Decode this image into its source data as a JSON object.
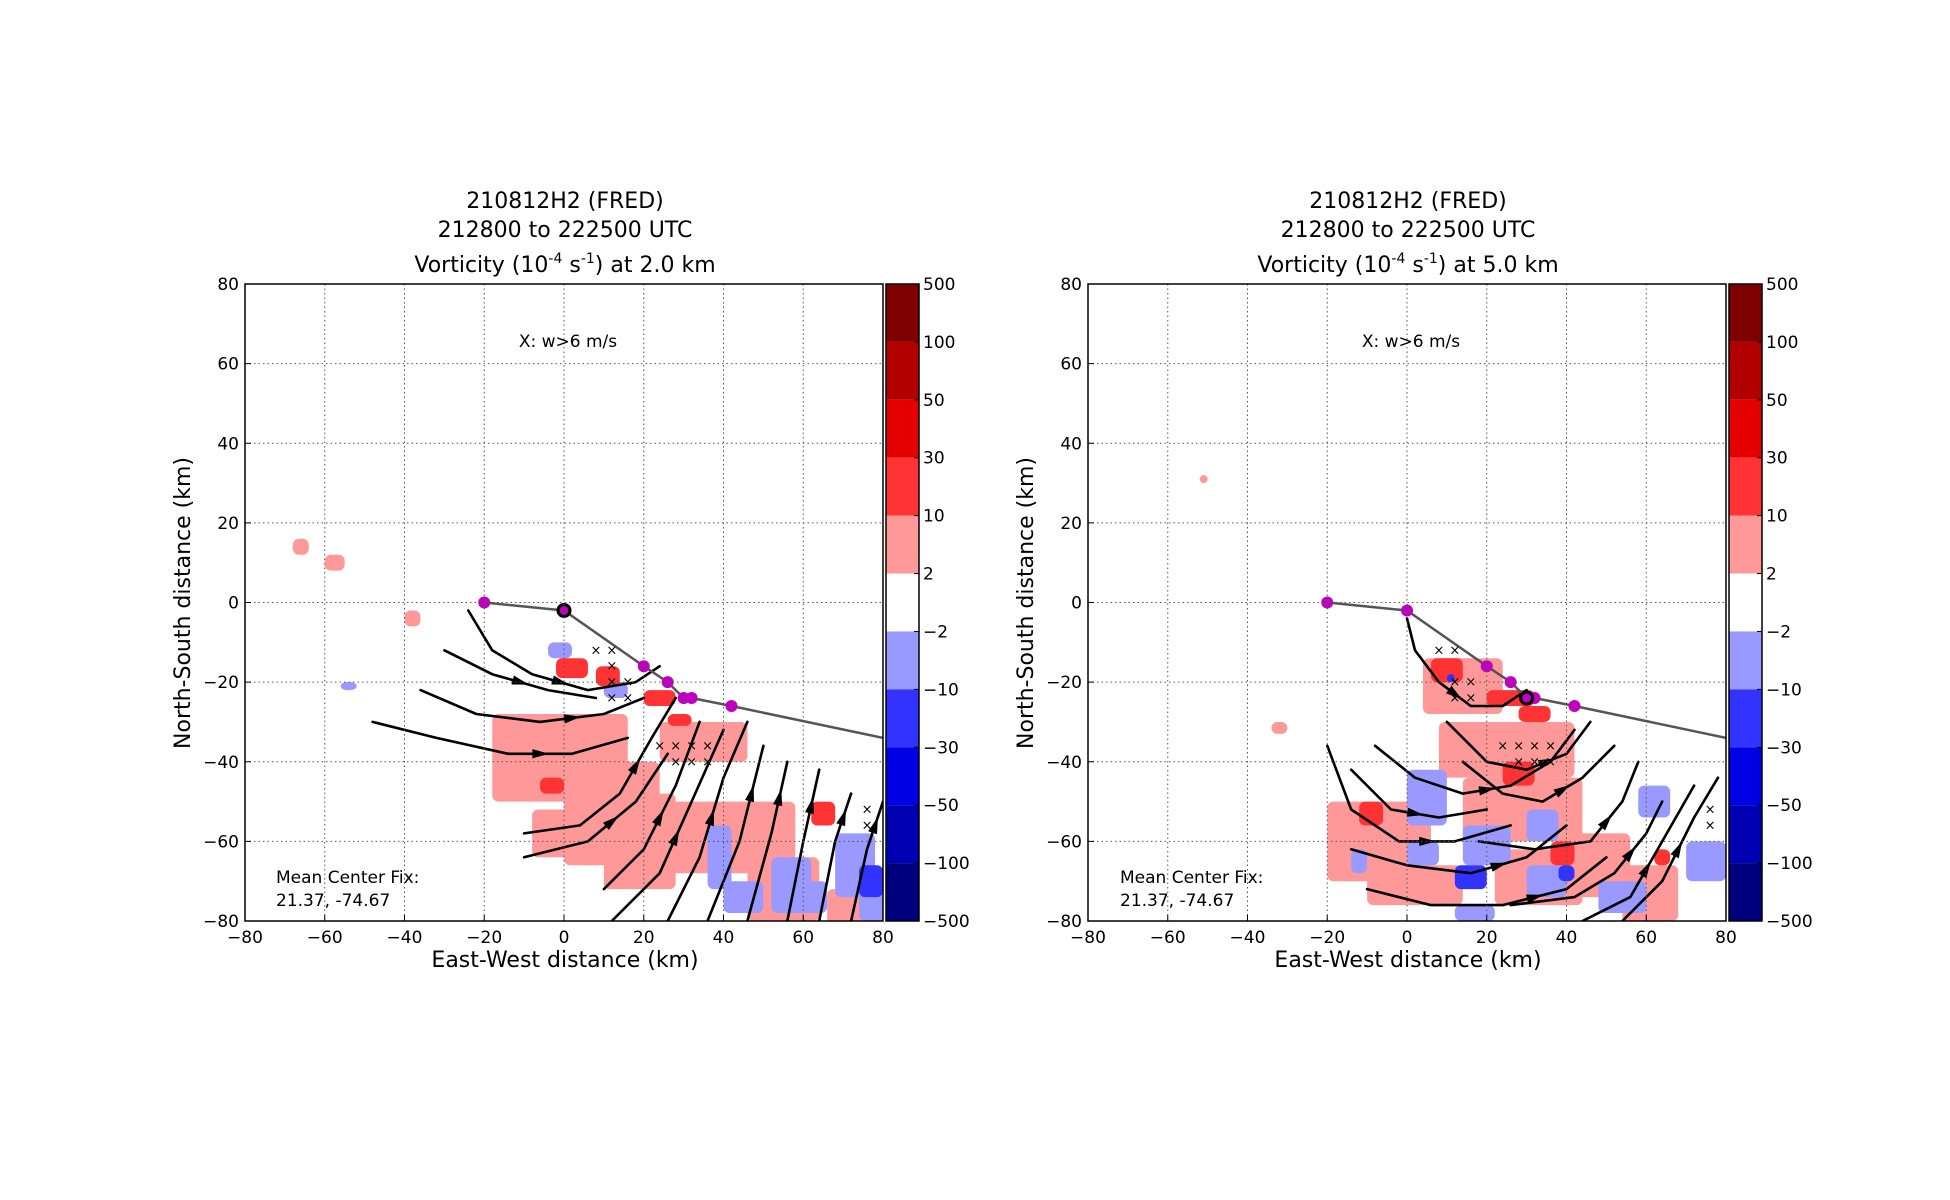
{
  "chart_data": [
    {
      "type": "contour-map",
      "title_lines": [
        "210812H2 (FRED)",
        "212800 to 222500 UTC"
      ],
      "title_main": "Vorticity (10",
      "title_sup1": "-4",
      "title_mid": " s",
      "title_sup2": "-1",
      "title_end": ") at 2.0 km",
      "xlabel": "East-West distance (km)",
      "ylabel": "North-South distance (km)",
      "xlim": [
        -80,
        80
      ],
      "ylim": [
        -80,
        80
      ],
      "xticks": [
        -80,
        -60,
        -40,
        -20,
        0,
        20,
        40,
        60,
        80
      ],
      "yticks": [
        -80,
        -60,
        -40,
        -20,
        0,
        20,
        40,
        60,
        80
      ],
      "grid": true,
      "legend_text": "X: w>6 m/s",
      "center_fix_label": "Mean Center Fix:",
      "center_fix_value": "21.37, -74.67",
      "colorbar_levels": [
        -500,
        -100,
        -50,
        -30,
        -10,
        -2,
        2,
        10,
        30,
        50,
        100,
        500
      ],
      "colorbar_labels": [
        "500",
        "100",
        "50",
        "30",
        "10",
        "2",
        "−2",
        "−10",
        "−30",
        "−50",
        "−100",
        "−500"
      ],
      "colorbar_colors": [
        "#7f0000",
        "#b20000",
        "#e50000",
        "#ff3333",
        "#ff9999",
        "#ffffff",
        "#9999ff",
        "#3333ff",
        "#0000e5",
        "#0000b2",
        "#00007f"
      ],
      "track": [
        [
          -20,
          0
        ],
        [
          0,
          -2
        ],
        [
          20,
          -16
        ],
        [
          26,
          -20
        ],
        [
          30,
          -24
        ],
        [
          32,
          -24
        ],
        [
          42,
          -26
        ],
        [
          80,
          -34
        ]
      ],
      "track_points": [
        [
          -20,
          0
        ],
        [
          0,
          -2
        ],
        [
          20,
          -16
        ],
        [
          26,
          -20
        ],
        [
          30,
          -24
        ],
        [
          32,
          -24
        ],
        [
          42,
          -26
        ]
      ],
      "center": [
        0,
        -2
      ],
      "w_marks": [
        [
          8,
          -12
        ],
        [
          12,
          -12
        ],
        [
          12,
          -16
        ],
        [
          12,
          -20
        ],
        [
          16,
          -20
        ],
        [
          12,
          -24
        ],
        [
          16,
          -24
        ],
        [
          24,
          -36
        ],
        [
          28,
          -36
        ],
        [
          32,
          -36
        ],
        [
          36,
          -36
        ],
        [
          28,
          -40
        ],
        [
          32,
          -40
        ],
        [
          36,
          -40
        ],
        [
          76,
          -52
        ],
        [
          76,
          -56
        ]
      ],
      "positive_patches": [
        [
          -18,
          -28,
          34,
          22
        ],
        [
          0,
          -40,
          24,
          26
        ],
        [
          -8,
          -52,
          30,
          12
        ],
        [
          24,
          -30,
          22,
          10
        ],
        [
          26,
          -50,
          32,
          18
        ],
        [
          -68,
          16,
          4,
          4
        ],
        [
          -60,
          12,
          5,
          4
        ],
        [
          -40,
          -2,
          4,
          4
        ],
        [
          46,
          -64,
          18,
          16
        ],
        [
          66,
          -72,
          12,
          22
        ],
        [
          10,
          -48,
          18,
          24
        ]
      ],
      "strong_patches": [
        [
          -2,
          -14,
          8,
          5
        ],
        [
          8,
          -16,
          6,
          5
        ],
        [
          -6,
          -44,
          6,
          4
        ],
        [
          20,
          -22,
          8,
          4
        ],
        [
          26,
          -28,
          6,
          3
        ],
        [
          62,
          -50,
          6,
          6
        ]
      ],
      "negative_patches": [
        [
          -4,
          -10,
          6,
          4
        ],
        [
          10,
          -20,
          6,
          4
        ],
        [
          36,
          -56,
          6,
          16
        ],
        [
          52,
          -64,
          10,
          14
        ],
        [
          58,
          -70,
          8,
          8
        ],
        [
          68,
          -58,
          10,
          16
        ],
        [
          74,
          -70,
          8,
          10
        ],
        [
          40,
          -70,
          10,
          8
        ],
        [
          -56,
          -20,
          4,
          2
        ]
      ],
      "blue_patches": [
        [
          74,
          -66,
          6,
          8
        ]
      ],
      "streamlines": [
        [
          [
            -24,
            -2
          ],
          [
            -18,
            -12
          ],
          [
            -8,
            -18
          ],
          [
            6,
            -22
          ],
          [
            18,
            -20
          ],
          [
            24,
            -16
          ]
        ],
        [
          [
            -30,
            -12
          ],
          [
            -18,
            -18
          ],
          [
            -4,
            -22
          ],
          [
            8,
            -24
          ]
        ],
        [
          [
            -36,
            -22
          ],
          [
            -22,
            -28
          ],
          [
            -6,
            -30
          ],
          [
            10,
            -28
          ],
          [
            20,
            -24
          ]
        ],
        [
          [
            -48,
            -30
          ],
          [
            -32,
            -34
          ],
          [
            -14,
            -38
          ],
          [
            2,
            -38
          ],
          [
            16,
            -34
          ]
        ],
        [
          [
            -10,
            -58
          ],
          [
            4,
            -56
          ],
          [
            14,
            -48
          ],
          [
            22,
            -34
          ],
          [
            28,
            -24
          ]
        ],
        [
          [
            -10,
            -64
          ],
          [
            6,
            -60
          ],
          [
            18,
            -50
          ],
          [
            26,
            -38
          ]
        ],
        [
          [
            10,
            -72
          ],
          [
            20,
            -62
          ],
          [
            28,
            -46
          ],
          [
            34,
            -30
          ]
        ],
        [
          [
            12,
            -80
          ],
          [
            24,
            -68
          ],
          [
            32,
            -50
          ],
          [
            40,
            -32
          ]
        ],
        [
          [
            26,
            -80
          ],
          [
            34,
            -64
          ],
          [
            40,
            -44
          ],
          [
            46,
            -30
          ]
        ],
        [
          [
            36,
            -80
          ],
          [
            44,
            -60
          ],
          [
            50,
            -36
          ]
        ],
        [
          [
            46,
            -80
          ],
          [
            52,
            -58
          ],
          [
            56,
            -40
          ]
        ],
        [
          [
            56,
            -80
          ],
          [
            60,
            -60
          ],
          [
            64,
            -42
          ]
        ],
        [
          [
            64,
            -80
          ],
          [
            68,
            -60
          ],
          [
            72,
            -48
          ]
        ],
        [
          [
            72,
            -80
          ],
          [
            76,
            -62
          ],
          [
            80,
            -50
          ]
        ]
      ]
    },
    {
      "type": "contour-map",
      "title_lines": [
        "210812H2 (FRED)",
        "212800 to 222500 UTC"
      ],
      "title_main": "Vorticity (10",
      "title_sup1": "-4",
      "title_mid": " s",
      "title_sup2": "-1",
      "title_end": ") at 5.0 km",
      "xlabel": "East-West distance (km)",
      "ylabel": "North-South distance (km)",
      "xlim": [
        -80,
        80
      ],
      "ylim": [
        -80,
        80
      ],
      "xticks": [
        -80,
        -60,
        -40,
        -20,
        0,
        20,
        40,
        60,
        80
      ],
      "yticks": [
        -80,
        -60,
        -40,
        -20,
        0,
        20,
        40,
        60,
        80
      ],
      "grid": true,
      "legend_text": "X: w>6 m/s",
      "center_fix_label": "Mean Center Fix:",
      "center_fix_value": "21.37, -74.67",
      "colorbar_levels": [
        -500,
        -100,
        -50,
        -30,
        -10,
        -2,
        2,
        10,
        30,
        50,
        100,
        500
      ],
      "colorbar_labels": [
        "500",
        "100",
        "50",
        "30",
        "10",
        "2",
        "−2",
        "−10",
        "−30",
        "−50",
        "−100",
        "−500"
      ],
      "colorbar_colors": [
        "#7f0000",
        "#b20000",
        "#e50000",
        "#ff3333",
        "#ff9999",
        "#ffffff",
        "#9999ff",
        "#3333ff",
        "#0000e5",
        "#0000b2",
        "#00007f"
      ],
      "track": [
        [
          -20,
          0
        ],
        [
          0,
          -2
        ],
        [
          20,
          -16
        ],
        [
          26,
          -20
        ],
        [
          30,
          -24
        ],
        [
          32,
          -24
        ],
        [
          42,
          -26
        ],
        [
          80,
          -34
        ]
      ],
      "track_points": [
        [
          -20,
          0
        ],
        [
          0,
          -2
        ],
        [
          20,
          -16
        ],
        [
          26,
          -20
        ],
        [
          30,
          -24
        ],
        [
          32,
          -24
        ],
        [
          42,
          -26
        ]
      ],
      "center": [
        30,
        -24
      ],
      "w_marks": [
        [
          8,
          -12
        ],
        [
          12,
          -12
        ],
        [
          12,
          -20
        ],
        [
          16,
          -20
        ],
        [
          12,
          -24
        ],
        [
          16,
          -24
        ],
        [
          24,
          -36
        ],
        [
          28,
          -36
        ],
        [
          32,
          -36
        ],
        [
          36,
          -36
        ],
        [
          28,
          -40
        ],
        [
          32,
          -40
        ],
        [
          36,
          -40
        ],
        [
          76,
          -52
        ],
        [
          76,
          -56
        ]
      ],
      "positive_patches": [
        [
          4,
          -14,
          20,
          14
        ],
        [
          8,
          -30,
          34,
          14
        ],
        [
          14,
          -44,
          30,
          16
        ],
        [
          -20,
          -50,
          26,
          20
        ],
        [
          -10,
          -66,
          24,
          10
        ],
        [
          22,
          -62,
          22,
          14
        ],
        [
          40,
          -58,
          16,
          16
        ],
        [
          54,
          -66,
          14,
          14
        ],
        [
          -52,
          32,
          2,
          2
        ],
        [
          -34,
          -30,
          4,
          3
        ]
      ],
      "strong_patches": [
        [
          6,
          -14,
          8,
          6
        ],
        [
          20,
          -22,
          12,
          4
        ],
        [
          28,
          -26,
          8,
          4
        ],
        [
          24,
          -40,
          8,
          6
        ],
        [
          -12,
          -50,
          6,
          6
        ],
        [
          36,
          -60,
          6,
          6
        ],
        [
          62,
          -62,
          4,
          4
        ]
      ],
      "negative_patches": [
        [
          10,
          -16,
          4,
          4
        ],
        [
          0,
          -42,
          10,
          14
        ],
        [
          14,
          -56,
          12,
          10
        ],
        [
          30,
          -52,
          8,
          8
        ],
        [
          30,
          -66,
          10,
          8
        ],
        [
          48,
          -70,
          12,
          8
        ],
        [
          0,
          -60,
          8,
          6
        ],
        [
          -14,
          -62,
          4,
          6
        ],
        [
          12,
          -76,
          10,
          4
        ],
        [
          58,
          -46,
          8,
          8
        ],
        [
          70,
          -60,
          10,
          10
        ]
      ],
      "blue_patches": [
        [
          12,
          -66,
          8,
          6
        ],
        [
          38,
          -66,
          4,
          4
        ],
        [
          10,
          -18,
          2,
          2
        ]
      ],
      "streamlines": [
        [
          [
            0,
            -4
          ],
          [
            2,
            -12
          ],
          [
            8,
            -20
          ],
          [
            16,
            -26
          ],
          [
            24,
            -26
          ],
          [
            30,
            -22
          ]
        ],
        [
          [
            -8,
            -36
          ],
          [
            2,
            -44
          ],
          [
            14,
            -48
          ],
          [
            26,
            -46
          ],
          [
            36,
            -40
          ],
          [
            42,
            -32
          ]
        ],
        [
          [
            -20,
            -36
          ],
          [
            -14,
            -52
          ],
          [
            -2,
            -60
          ],
          [
            12,
            -60
          ],
          [
            26,
            -56
          ]
        ],
        [
          [
            -14,
            -42
          ],
          [
            -4,
            -52
          ],
          [
            8,
            -54
          ],
          [
            20,
            -52
          ]
        ],
        [
          [
            -14,
            -62
          ],
          [
            0,
            -66
          ],
          [
            16,
            -68
          ],
          [
            30,
            -64
          ],
          [
            40,
            -56
          ]
        ],
        [
          [
            -10,
            -72
          ],
          [
            6,
            -76
          ],
          [
            24,
            -76
          ],
          [
            40,
            -72
          ],
          [
            50,
            -64
          ]
        ],
        [
          [
            10,
            -30
          ],
          [
            20,
            -40
          ],
          [
            30,
            -42
          ],
          [
            40,
            -38
          ],
          [
            46,
            -30
          ]
        ],
        [
          [
            14,
            -40
          ],
          [
            24,
            -48
          ],
          [
            34,
            -50
          ],
          [
            44,
            -44
          ],
          [
            52,
            -36
          ]
        ],
        [
          [
            18,
            -60
          ],
          [
            32,
            -62
          ],
          [
            46,
            -60
          ],
          [
            54,
            -50
          ],
          [
            58,
            -40
          ]
        ],
        [
          [
            44,
            -80
          ],
          [
            56,
            -74
          ],
          [
            64,
            -60
          ],
          [
            72,
            -46
          ]
        ],
        [
          [
            54,
            -80
          ],
          [
            64,
            -70
          ],
          [
            72,
            -54
          ],
          [
            78,
            -44
          ]
        ],
        [
          [
            26,
            -76
          ],
          [
            42,
            -74
          ],
          [
            52,
            -68
          ],
          [
            60,
            -58
          ],
          [
            64,
            -50
          ]
        ]
      ]
    }
  ]
}
